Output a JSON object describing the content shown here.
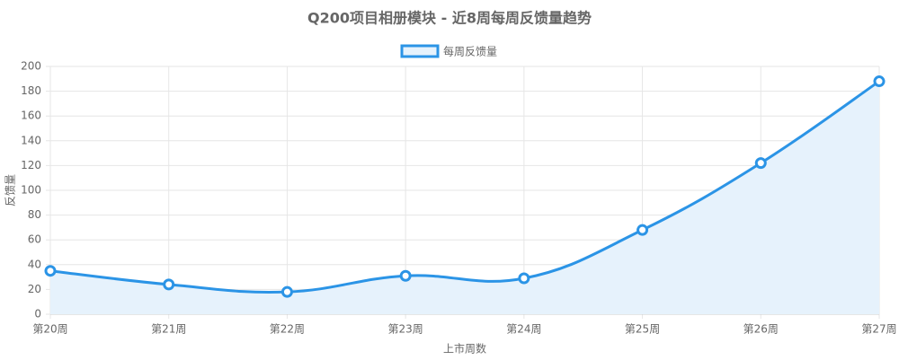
{
  "chart_data": {
    "type": "line",
    "title": "Q200项目相册模块 - 近8周每周反馈量趋势",
    "categories": [
      "第20周",
      "第21周",
      "第22周",
      "第23周",
      "第24周",
      "第25周",
      "第26周",
      "第27周"
    ],
    "series": [
      {
        "name": "每周反馈量",
        "color": "#2b94e6",
        "fill": "#e6f2fc",
        "values": [
          35,
          24,
          18,
          31,
          29,
          68,
          122,
          188
        ]
      }
    ],
    "x_label": "上市周数",
    "y_label": "反馈量",
    "ylim": [
      0,
      200
    ],
    "yticks": [
      0,
      20,
      40,
      60,
      80,
      100,
      120,
      140,
      160,
      180,
      200
    ],
    "grid": true,
    "legend": "top"
  }
}
